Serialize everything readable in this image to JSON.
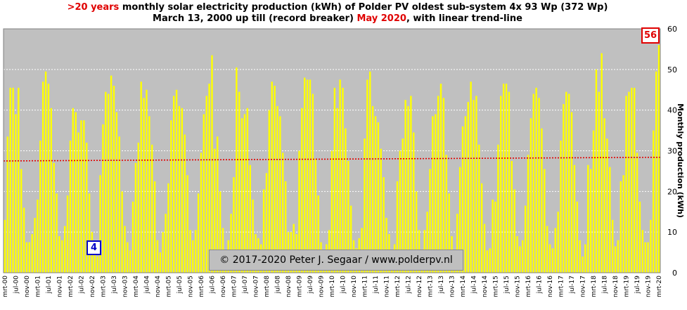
{
  "title": {
    "line1_pre": ">20 years",
    "line1_rest": " monthly solar electricity production (kWh)  of Polder PV oldest sub-system 4x 93 Wp (372 Wp)",
    "line2_pre": "March 13, 2000 up till (record breaker) ",
    "line2_red": "May 2020",
    "line2_post": ", with linear trend-line"
  },
  "copyright": "© 2017-2020  Peter J. Segaar / www.polderpv.nl",
  "badges": {
    "min_value": "4",
    "max_value": "56"
  },
  "colors": {
    "plot_background": "#c0c0c0",
    "bar": "#ffff00",
    "bar_edge": "#d8d800",
    "trend": "#e00000",
    "max_badge": "#e00000",
    "min_badge": "#0000c8"
  },
  "chart_data": {
    "type": "bar",
    "title": ">20 years monthly solar electricity production (kWh)  of Polder PV oldest sub-system 4x 93 Wp (372 Wp)",
    "subtitle": "March 13, 2000 up till (record breaker) May 2020, with linear trend-line",
    "ylabel": "Monthly production (kWh)",
    "ylim": [
      0,
      60
    ],
    "yticks": [
      "0",
      "10",
      "20",
      "30",
      "40",
      "50",
      "60"
    ],
    "grid": true,
    "trend_line": {
      "start": 27.5,
      "end": 28.4,
      "style": "dotted"
    },
    "x_tick_labels": [
      "mrt-00",
      "jul-00",
      "nov-00",
      "mrt-01",
      "jul-01",
      "nov-01",
      "mrt-02",
      "jul-02",
      "nov-02",
      "mrt-03",
      "jul-03",
      "nov-03",
      "mrt-04",
      "jul-04",
      "nov-04",
      "mrt-05",
      "jul-05",
      "nov-05",
      "mrt-06",
      "jul-06",
      "nov-06",
      "mrt-07",
      "jul-07",
      "nov-07",
      "mrt-08",
      "jul-08",
      "nov-08",
      "mrt-09",
      "jul-09",
      "nov-09",
      "mrt-10",
      "jul-10",
      "nov-10",
      "mrt-11",
      "jul-11",
      "nov-11",
      "mrt-12",
      "jul-12",
      "nov-12",
      "mrt-13",
      "jul-13",
      "nov-13",
      "mrt-14",
      "jul-14",
      "nov-14",
      "mrt-15",
      "jul-15",
      "nov-15",
      "mrt-16",
      "jul-16",
      "nov-16",
      "mrt-17",
      "jul-17",
      "nov-17",
      "mrt-18",
      "jul-18",
      "nov-18",
      "mrt-19",
      "jul-19",
      "nov-19",
      "mrt-20"
    ],
    "series": [
      {
        "values": [
          13,
          33.5,
          45.5,
          45.5,
          39,
          45.5,
          25.5,
          16,
          7.5,
          7.5,
          9.5,
          13.5,
          18,
          32.5,
          47,
          49.5,
          46.5,
          40.5,
          27,
          19.5,
          9,
          8,
          11.5,
          19,
          32.5,
          40.5,
          39.5,
          34.5,
          37.5,
          37.5,
          32,
          19.5,
          10,
          5,
          4,
          24,
          36.5,
          44.5,
          44,
          48.5,
          46,
          39.5,
          33.5,
          20,
          11.5,
          7.5,
          5.5,
          17.5,
          27,
          32,
          47,
          43,
          45,
          38.5,
          31.5,
          22.5,
          8,
          5,
          10,
          14.5,
          22,
          37.5,
          43.5,
          45,
          41,
          40.5,
          34,
          24,
          10.5,
          8,
          10.5,
          19.5,
          29.5,
          39,
          43.5,
          46.5,
          53.5,
          30.5,
          33.5,
          20,
          11,
          5.5,
          8,
          14.5,
          23.5,
          50.5,
          44.5,
          38,
          39,
          40.5,
          26.5,
          18,
          9.5,
          8.5,
          7,
          20.5,
          24.5,
          40,
          47,
          46,
          41,
          38.5,
          29.5,
          22.5,
          10,
          10,
          12,
          9.5,
          30,
          40.5,
          48,
          47.5,
          47.5,
          44,
          28,
          19,
          7.5,
          5.5,
          7,
          10.5,
          30,
          45.5,
          40.5,
          47.5,
          45.5,
          35.5,
          27.5,
          16.5,
          8,
          6,
          8.5,
          11,
          33,
          47.5,
          49.5,
          41,
          38.5,
          37,
          30.5,
          23.5,
          13.5,
          9.5,
          5,
          7,
          22.5,
          30,
          33,
          42.5,
          41,
          43.5,
          34.5,
          20,
          10.5,
          5,
          10.5,
          15,
          25.5,
          38.5,
          39,
          43.5,
          46.5,
          43,
          29,
          19.5,
          9,
          4,
          14.5,
          26,
          36,
          38.5,
          42,
          47,
          42.5,
          43.5,
          31.5,
          22,
          12,
          5.5,
          6,
          18,
          17.5,
          31.5,
          43.5,
          46.5,
          46.5,
          44.5,
          27.5,
          20.5,
          9,
          6.5,
          8,
          16.5,
          29,
          38,
          44,
          45.5,
          43,
          35.5,
          25.5,
          11.5,
          7,
          6,
          11,
          15,
          32.5,
          41.5,
          44.5,
          44,
          39.5,
          26.5,
          17.5,
          8,
          4,
          7,
          26.5,
          25.5,
          35,
          50,
          44.5,
          54,
          38,
          33,
          26,
          13,
          6.5,
          8,
          22.5,
          24,
          43.5,
          44.5,
          45.5,
          45.5,
          29.5,
          17.5,
          10.5,
          7.5,
          7.5,
          13,
          35,
          49.5,
          56
        ]
      }
    ]
  }
}
